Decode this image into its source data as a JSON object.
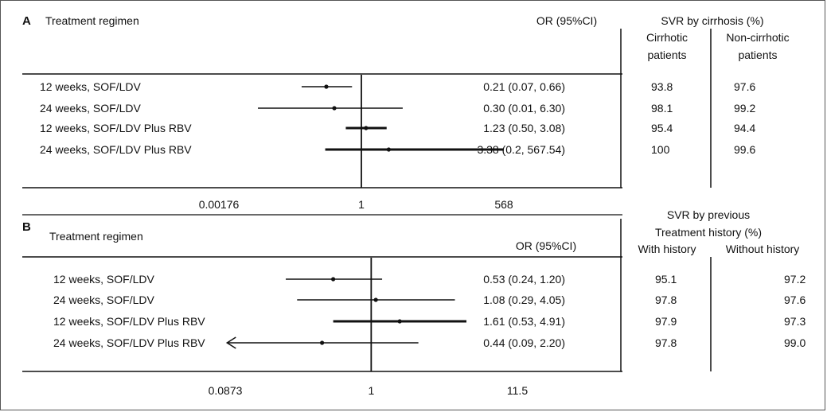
{
  "chart_data": [
    {
      "type": "forest",
      "panel_label": "A",
      "row_header": "Treatment regimen",
      "or_header": "OR (95%CI)",
      "group_header_lines": [
        "SVR by cirrhosis (%)"
      ],
      "col_headers": [
        [
          "Cirrhotic",
          "patients"
        ],
        [
          "Non-cirrhotic",
          "patients"
        ]
      ],
      "x_scale": "log",
      "reference_value": 1,
      "xlim": [
        0.00176,
        568
      ],
      "x_ticks": [
        {
          "value": 0.00176,
          "label": "0.00176"
        },
        {
          "value": 1,
          "label": "1"
        },
        {
          "value": 568,
          "label": "568"
        }
      ],
      "rows": [
        {
          "label": "12 weeks, SOF/LDV",
          "or": 0.21,
          "lo": 0.07,
          "hi": 0.66,
          "or_text": "0.21 (0.07, 0.66)",
          "col1": "93.8",
          "col2": "97.6"
        },
        {
          "label": "24 weeks, SOF/LDV",
          "or": 0.3,
          "lo": 0.01,
          "hi": 6.3,
          "or_text": "0.30 (0.01, 6.30)",
          "col1": "98.1",
          "col2": "99.2"
        },
        {
          "label": "12 weeks, SOF/LDV Plus RBV",
          "or": 1.23,
          "lo": 0.5,
          "hi": 3.08,
          "or_text": "1.23 (0.50, 3.08)",
          "col1": "95.4",
          "col2": "94.4"
        },
        {
          "label": "24 weeks, SOF/LDV Plus RBV",
          "or": 3.38,
          "lo": 0.2,
          "hi": 567.54,
          "or_text": "3.38 (0.2, 567.54)",
          "col1": "100",
          "col2": "99.6"
        }
      ]
    },
    {
      "type": "forest",
      "panel_label": "B",
      "row_header": "Treatment regimen",
      "or_header": "OR (95%CI)",
      "group_header_lines": [
        "SVR by previous",
        "Treatment history (%)"
      ],
      "col_headers": [
        [
          "With history"
        ],
        [
          "Without history"
        ]
      ],
      "x_scale": "log",
      "reference_value": 1,
      "xlim": [
        0.0873,
        11.5
      ],
      "x_ticks": [
        {
          "value": 0.0873,
          "label": "0.0873"
        },
        {
          "value": 1,
          "label": "1"
        },
        {
          "value": 11.5,
          "label": "11.5"
        }
      ],
      "rows": [
        {
          "label": "12 weeks, SOF/LDV",
          "or": 0.53,
          "lo": 0.24,
          "hi": 1.2,
          "or_text": "0.53  (0.24, 1.20)",
          "col1": "95.1",
          "col2": "97.2"
        },
        {
          "label": "24 weeks, SOF/LDV",
          "or": 1.08,
          "lo": 0.29,
          "hi": 4.05,
          "or_text": "1.08  (0.29, 4.05)",
          "col1": "97.8",
          "col2": "97.6"
        },
        {
          "label": "12 weeks, SOF/LDV Plus RBV",
          "or": 1.61,
          "lo": 0.53,
          "hi": 4.91,
          "or_text": "1.61  (0.53, 4.91)",
          "col1": "97.9",
          "col2": "97.3"
        },
        {
          "label": "24 weeks, SOF/LDV Plus RBV",
          "or": 0.44,
          "lo": 0.09,
          "hi": 2.2,
          "or_text": "0.44  (0.09, 2.20)",
          "col1": "97.8",
          "col2": "99.0",
          "lo_arrow": true
        }
      ]
    }
  ]
}
